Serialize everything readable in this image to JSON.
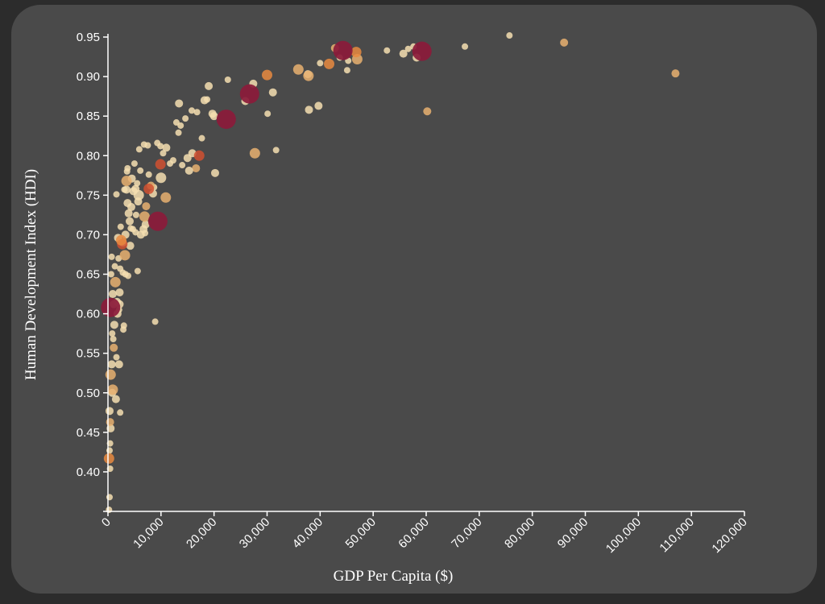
{
  "chart_data": {
    "type": "scatter",
    "title": "",
    "xlabel": "GDP Per Capita ($)",
    "ylabel": "Human Development Index (HDI)",
    "xlim": [
      0,
      120000
    ],
    "ylim": [
      0.35,
      0.95
    ],
    "x_ticks": [
      {
        "value": 0,
        "label": "0"
      },
      {
        "value": 10000,
        "label": "10,000"
      },
      {
        "value": 20000,
        "label": "20,000"
      },
      {
        "value": 30000,
        "label": "30,000"
      },
      {
        "value": 40000,
        "label": "40,000"
      },
      {
        "value": 50000,
        "label": "50,000"
      },
      {
        "value": 60000,
        "label": "60,000"
      },
      {
        "value": 70000,
        "label": "70,000"
      },
      {
        "value": 80000,
        "label": "80,000"
      },
      {
        "value": 90000,
        "label": "90,000"
      },
      {
        "value": 100000,
        "label": "100,000"
      },
      {
        "value": 110000,
        "label": "110,000"
      },
      {
        "value": 120000,
        "label": "120,000"
      }
    ],
    "y_ticks": [
      {
        "value": 0.4,
        "label": "0.40"
      },
      {
        "value": 0.45,
        "label": "0.45"
      },
      {
        "value": 0.5,
        "label": "0.50"
      },
      {
        "value": 0.55,
        "label": "0.55"
      },
      {
        "value": 0.6,
        "label": "0.60"
      },
      {
        "value": 0.65,
        "label": "0.65"
      },
      {
        "value": 0.7,
        "label": "0.70"
      },
      {
        "value": 0.75,
        "label": "0.75"
      },
      {
        "value": 0.8,
        "label": "0.80"
      },
      {
        "value": 0.85,
        "label": "0.85"
      },
      {
        "value": 0.9,
        "label": "0.90"
      },
      {
        "value": 0.95,
        "label": "0.95"
      }
    ],
    "grid": false,
    "legend": "none",
    "colors": {
      "background": "#4a4a4a",
      "page": "#2c2c2c",
      "axis": "#ffffff",
      "tier1": "#f5deb0",
      "tier2": "#e8b070",
      "tier3": "#e88a40",
      "tier4": "#d05030",
      "tier5": "#8b1a3a"
    },
    "size_levels": {
      "xs": 1,
      "s": 2,
      "m": 3,
      "l": 4,
      "xl": 5
    },
    "points": [
      {
        "x": 75700,
        "y": 0.952,
        "size": "xs",
        "color": "tier1"
      },
      {
        "x": 86000,
        "y": 0.943,
        "size": "s",
        "color": "tier2"
      },
      {
        "x": 107000,
        "y": 0.904,
        "size": "s",
        "color": "tier2"
      },
      {
        "x": 67300,
        "y": 0.938,
        "size": "xs",
        "color": "tier1"
      },
      {
        "x": 60200,
        "y": 0.856,
        "size": "s",
        "color": "tier2"
      },
      {
        "x": 59200,
        "y": 0.932,
        "size": "xl",
        "color": "tier5"
      },
      {
        "x": 58200,
        "y": 0.924,
        "size": "s",
        "color": "tier1"
      },
      {
        "x": 57600,
        "y": 0.938,
        "size": "xs",
        "color": "tier1"
      },
      {
        "x": 56600,
        "y": 0.935,
        "size": "xs",
        "color": "tier1"
      },
      {
        "x": 55700,
        "y": 0.929,
        "size": "s",
        "color": "tier1"
      },
      {
        "x": 52600,
        "y": 0.933,
        "size": "xs",
        "color": "tier1"
      },
      {
        "x": 47000,
        "y": 0.922,
        "size": "m",
        "color": "tier2"
      },
      {
        "x": 46800,
        "y": 0.931,
        "size": "m",
        "color": "tier3"
      },
      {
        "x": 45300,
        "y": 0.92,
        "size": "xs",
        "color": "tier1"
      },
      {
        "x": 45100,
        "y": 0.908,
        "size": "xs",
        "color": "tier1"
      },
      {
        "x": 44300,
        "y": 0.933,
        "size": "xl",
        "color": "tier5"
      },
      {
        "x": 43700,
        "y": 0.924,
        "size": "xs",
        "color": "tier1"
      },
      {
        "x": 42800,
        "y": 0.936,
        "size": "s",
        "color": "tier2"
      },
      {
        "x": 41700,
        "y": 0.916,
        "size": "m",
        "color": "tier3"
      },
      {
        "x": 40000,
        "y": 0.917,
        "size": "xs",
        "color": "tier1"
      },
      {
        "x": 39700,
        "y": 0.863,
        "size": "s",
        "color": "tier1"
      },
      {
        "x": 37900,
        "y": 0.858,
        "size": "s",
        "color": "tier1"
      },
      {
        "x": 37700,
        "y": 0.903,
        "size": "s",
        "color": "tier1"
      },
      {
        "x": 37800,
        "y": 0.901,
        "size": "m",
        "color": "tier2"
      },
      {
        "x": 35900,
        "y": 0.909,
        "size": "m",
        "color": "tier2"
      },
      {
        "x": 31700,
        "y": 0.807,
        "size": "xs",
        "color": "tier1"
      },
      {
        "x": 31100,
        "y": 0.88,
        "size": "s",
        "color": "tier1"
      },
      {
        "x": 30000,
        "y": 0.902,
        "size": "m",
        "color": "tier3"
      },
      {
        "x": 30100,
        "y": 0.853,
        "size": "xs",
        "color": "tier1"
      },
      {
        "x": 27700,
        "y": 0.803,
        "size": "m",
        "color": "tier2"
      },
      {
        "x": 27400,
        "y": 0.891,
        "size": "s",
        "color": "tier1"
      },
      {
        "x": 26700,
        "y": 0.878,
        "size": "xl",
        "color": "tier5"
      },
      {
        "x": 25900,
        "y": 0.869,
        "size": "s",
        "color": "tier1"
      },
      {
        "x": 22300,
        "y": 0.846,
        "size": "xl",
        "color": "tier5"
      },
      {
        "x": 22600,
        "y": 0.896,
        "size": "xs",
        "color": "tier1"
      },
      {
        "x": 20200,
        "y": 0.778,
        "size": "s",
        "color": "tier1"
      },
      {
        "x": 20000,
        "y": 0.85,
        "size": "s",
        "color": "tier1"
      },
      {
        "x": 19700,
        "y": 0.853,
        "size": "s",
        "color": "tier1"
      },
      {
        "x": 19000,
        "y": 0.888,
        "size": "s",
        "color": "tier1"
      },
      {
        "x": 18700,
        "y": 0.871,
        "size": "xs",
        "color": "tier1"
      },
      {
        "x": 18200,
        "y": 0.87,
        "size": "s",
        "color": "tier1"
      },
      {
        "x": 17700,
        "y": 0.822,
        "size": "xs",
        "color": "tier1"
      },
      {
        "x": 17200,
        "y": 0.8,
        "size": "m",
        "color": "tier4"
      },
      {
        "x": 16800,
        "y": 0.855,
        "size": "xs",
        "color": "tier1"
      },
      {
        "x": 16600,
        "y": 0.784,
        "size": "s",
        "color": "tier2"
      },
      {
        "x": 15800,
        "y": 0.857,
        "size": "xs",
        "color": "tier1"
      },
      {
        "x": 15900,
        "y": 0.803,
        "size": "s",
        "color": "tier1"
      },
      {
        "x": 15300,
        "y": 0.781,
        "size": "s",
        "color": "tier1"
      },
      {
        "x": 15000,
        "y": 0.797,
        "size": "s",
        "color": "tier1"
      },
      {
        "x": 14600,
        "y": 0.847,
        "size": "xs",
        "color": "tier1"
      },
      {
        "x": 14000,
        "y": 0.788,
        "size": "xs",
        "color": "tier1"
      },
      {
        "x": 13700,
        "y": 0.838,
        "size": "xs",
        "color": "tier1"
      },
      {
        "x": 13400,
        "y": 0.866,
        "size": "s",
        "color": "tier1"
      },
      {
        "x": 13300,
        "y": 0.829,
        "size": "xs",
        "color": "tier1"
      },
      {
        "x": 12900,
        "y": 0.842,
        "size": "xs",
        "color": "tier1"
      },
      {
        "x": 12300,
        "y": 0.794,
        "size": "xs",
        "color": "tier1"
      },
      {
        "x": 11700,
        "y": 0.79,
        "size": "xs",
        "color": "tier1"
      },
      {
        "x": 11000,
        "y": 0.81,
        "size": "s",
        "color": "tier1"
      },
      {
        "x": 10900,
        "y": 0.747,
        "size": "m",
        "color": "tier2"
      },
      {
        "x": 10400,
        "y": 0.803,
        "size": "xs",
        "color": "tier1"
      },
      {
        "x": 9900,
        "y": 0.789,
        "size": "m",
        "color": "tier4"
      },
      {
        "x": 10000,
        "y": 0.772,
        "size": "m",
        "color": "tier1"
      },
      {
        "x": 9900,
        "y": 0.812,
        "size": "xs",
        "color": "tier1"
      },
      {
        "x": 9300,
        "y": 0.816,
        "size": "xs",
        "color": "tier1"
      },
      {
        "x": 9400,
        "y": 0.717,
        "size": "xl",
        "color": "tier5"
      },
      {
        "x": 8900,
        "y": 0.59,
        "size": "xs",
        "color": "tier1"
      },
      {
        "x": 8700,
        "y": 0.76,
        "size": "xs",
        "color": "tier1"
      },
      {
        "x": 8500,
        "y": 0.752,
        "size": "s",
        "color": "tier1"
      },
      {
        "x": 8100,
        "y": 0.762,
        "size": "s",
        "color": "tier2"
      },
      {
        "x": 7700,
        "y": 0.758,
        "size": "m",
        "color": "tier4"
      },
      {
        "x": 7700,
        "y": 0.776,
        "size": "xs",
        "color": "tier1"
      },
      {
        "x": 7500,
        "y": 0.813,
        "size": "xs",
        "color": "tier1"
      },
      {
        "x": 7200,
        "y": 0.736,
        "size": "s",
        "color": "tier2"
      },
      {
        "x": 7100,
        "y": 0.713,
        "size": "s",
        "color": "tier1"
      },
      {
        "x": 7000,
        "y": 0.702,
        "size": "xs",
        "color": "tier1"
      },
      {
        "x": 6900,
        "y": 0.723,
        "size": "m",
        "color": "tier2"
      },
      {
        "x": 6800,
        "y": 0.814,
        "size": "xs",
        "color": "tier1"
      },
      {
        "x": 6700,
        "y": 0.707,
        "size": "s",
        "color": "tier1"
      },
      {
        "x": 6200,
        "y": 0.7,
        "size": "s",
        "color": "tier1"
      },
      {
        "x": 6100,
        "y": 0.781,
        "size": "xs",
        "color": "tier1"
      },
      {
        "x": 5900,
        "y": 0.808,
        "size": "xs",
        "color": "tier1"
      },
      {
        "x": 5800,
        "y": 0.75,
        "size": "m",
        "color": "tier1"
      },
      {
        "x": 5700,
        "y": 0.742,
        "size": "s",
        "color": "tier1"
      },
      {
        "x": 5600,
        "y": 0.654,
        "size": "xs",
        "color": "tier1"
      },
      {
        "x": 5500,
        "y": 0.765,
        "size": "xs",
        "color": "tier1"
      },
      {
        "x": 5300,
        "y": 0.725,
        "size": "xs",
        "color": "tier1"
      },
      {
        "x": 5200,
        "y": 0.758,
        "size": "s",
        "color": "tier1"
      },
      {
        "x": 5200,
        "y": 0.703,
        "size": "xs",
        "color": "tier1"
      },
      {
        "x": 5000,
        "y": 0.79,
        "size": "xs",
        "color": "tier1"
      },
      {
        "x": 4800,
        "y": 0.755,
        "size": "s",
        "color": "tier1"
      },
      {
        "x": 4700,
        "y": 0.707,
        "size": "xs",
        "color": "tier1"
      },
      {
        "x": 4500,
        "y": 0.771,
        "size": "s",
        "color": "tier1"
      },
      {
        "x": 4400,
        "y": 0.735,
        "size": "s",
        "color": "tier1"
      },
      {
        "x": 4300,
        "y": 0.708,
        "size": "xs",
        "color": "tier1"
      },
      {
        "x": 4200,
        "y": 0.686,
        "size": "s",
        "color": "tier1"
      },
      {
        "x": 4100,
        "y": 0.717,
        "size": "s",
        "color": "tier1"
      },
      {
        "x": 3900,
        "y": 0.727,
        "size": "s",
        "color": "tier1"
      },
      {
        "x": 3800,
        "y": 0.648,
        "size": "xs",
        "color": "tier1"
      },
      {
        "x": 3700,
        "y": 0.784,
        "size": "xs",
        "color": "tier1"
      },
      {
        "x": 3700,
        "y": 0.74,
        "size": "s",
        "color": "tier1"
      },
      {
        "x": 3600,
        "y": 0.78,
        "size": "xs",
        "color": "tier1"
      },
      {
        "x": 3500,
        "y": 0.757,
        "size": "s",
        "color": "tier1"
      },
      {
        "x": 3500,
        "y": 0.768,
        "size": "m",
        "color": "tier2"
      },
      {
        "x": 3300,
        "y": 0.65,
        "size": "xs",
        "color": "tier1"
      },
      {
        "x": 3300,
        "y": 0.7,
        "size": "s",
        "color": "tier1"
      },
      {
        "x": 3200,
        "y": 0.674,
        "size": "m",
        "color": "tier2"
      },
      {
        "x": 3100,
        "y": 0.757,
        "size": "xs",
        "color": "tier1"
      },
      {
        "x": 3000,
        "y": 0.585,
        "size": "xs",
        "color": "tier1"
      },
      {
        "x": 2900,
        "y": 0.58,
        "size": "xs",
        "color": "tier1"
      },
      {
        "x": 2800,
        "y": 0.69,
        "size": "s",
        "color": "tier1"
      },
      {
        "x": 2800,
        "y": 0.652,
        "size": "xs",
        "color": "tier1"
      },
      {
        "x": 2700,
        "y": 0.688,
        "size": "m",
        "color": "tier4"
      },
      {
        "x": 2500,
        "y": 0.693,
        "size": "m",
        "color": "tier3"
      },
      {
        "x": 2400,
        "y": 0.71,
        "size": "xs",
        "color": "tier1"
      },
      {
        "x": 2300,
        "y": 0.657,
        "size": "xs",
        "color": "tier1"
      },
      {
        "x": 2300,
        "y": 0.475,
        "size": "xs",
        "color": "tier1"
      },
      {
        "x": 2200,
        "y": 0.612,
        "size": "s",
        "color": "tier1"
      },
      {
        "x": 2200,
        "y": 0.627,
        "size": "s",
        "color": "tier1"
      },
      {
        "x": 2100,
        "y": 0.605,
        "size": "xs",
        "color": "tier1"
      },
      {
        "x": 2100,
        "y": 0.536,
        "size": "s",
        "color": "tier1"
      },
      {
        "x": 2000,
        "y": 0.67,
        "size": "xs",
        "color": "tier1"
      },
      {
        "x": 1900,
        "y": 0.696,
        "size": "s",
        "color": "tier1"
      },
      {
        "x": 1800,
        "y": 0.6,
        "size": "s",
        "color": "tier1"
      },
      {
        "x": 1700,
        "y": 0.615,
        "size": "s",
        "color": "tier1"
      },
      {
        "x": 1600,
        "y": 0.751,
        "size": "xs",
        "color": "tier1"
      },
      {
        "x": 1600,
        "y": 0.545,
        "size": "xs",
        "color": "tier1"
      },
      {
        "x": 1500,
        "y": 0.492,
        "size": "s",
        "color": "tier1"
      },
      {
        "x": 1400,
        "y": 0.64,
        "size": "m",
        "color": "tier2"
      },
      {
        "x": 1300,
        "y": 0.66,
        "size": "xs",
        "color": "tier1"
      },
      {
        "x": 1200,
        "y": 0.586,
        "size": "s",
        "color": "tier1"
      },
      {
        "x": 1100,
        "y": 0.612,
        "size": "s",
        "color": "tier1"
      },
      {
        "x": 1100,
        "y": 0.557,
        "size": "s",
        "color": "tier2"
      },
      {
        "x": 1000,
        "y": 0.568,
        "size": "xs",
        "color": "tier1"
      },
      {
        "x": 900,
        "y": 0.625,
        "size": "s",
        "color": "tier1"
      },
      {
        "x": 900,
        "y": 0.504,
        "size": "m",
        "color": "tier2"
      },
      {
        "x": 800,
        "y": 0.5,
        "size": "s",
        "color": "tier1"
      },
      {
        "x": 800,
        "y": 0.575,
        "size": "xs",
        "color": "tier1"
      },
      {
        "x": 700,
        "y": 0.672,
        "size": "xs",
        "color": "tier1"
      },
      {
        "x": 700,
        "y": 0.536,
        "size": "s",
        "color": "tier1"
      },
      {
        "x": 600,
        "y": 0.65,
        "size": "xs",
        "color": "tier1"
      },
      {
        "x": 500,
        "y": 0.608,
        "size": "xl",
        "color": "tier5"
      },
      {
        "x": 500,
        "y": 0.523,
        "size": "m",
        "color": "tier2"
      },
      {
        "x": 500,
        "y": 0.455,
        "size": "s",
        "color": "tier1"
      },
      {
        "x": 400,
        "y": 0.463,
        "size": "s",
        "color": "tier2"
      },
      {
        "x": 400,
        "y": 0.404,
        "size": "xs",
        "color": "tier1"
      },
      {
        "x": 400,
        "y": 0.436,
        "size": "xs",
        "color": "tier1"
      },
      {
        "x": 300,
        "y": 0.427,
        "size": "xs",
        "color": "tier1"
      },
      {
        "x": 300,
        "y": 0.477,
        "size": "s",
        "color": "tier1"
      },
      {
        "x": 300,
        "y": 0.368,
        "size": "xs",
        "color": "tier1"
      },
      {
        "x": 200,
        "y": 0.417,
        "size": "m",
        "color": "tier3"
      },
      {
        "x": 200,
        "y": 0.352,
        "size": "xs",
        "color": "tier1"
      }
    ]
  }
}
